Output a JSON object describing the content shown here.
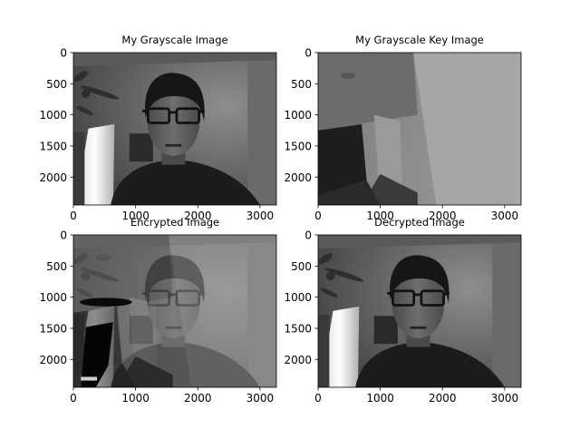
{
  "figure": {
    "background": "#ffffff"
  },
  "chart_data": [
    {
      "type": "image",
      "title": "My Grayscale Image",
      "content": "grayscale photo: man with glasses, ceiling fan at left, bright doorway at lower left",
      "xlim": [
        0,
        3264
      ],
      "ylim": [
        2448,
        0
      ],
      "xticks": [
        "0",
        "1000",
        "2000",
        "3000"
      ],
      "yticks": [
        "0",
        "500",
        "1000",
        "1500",
        "2000"
      ]
    },
    {
      "type": "image",
      "title": "My Grayscale Key Image",
      "content": "grayscale photo: room corner with walls, dark doorway at lower left",
      "xlim": [
        0,
        3264
      ],
      "ylim": [
        2448,
        0
      ],
      "xticks": [
        "0",
        "1000",
        "2000",
        "3000"
      ],
      "yticks": [
        "0",
        "500",
        "1000",
        "1500",
        "2000"
      ]
    },
    {
      "type": "image",
      "title": "Encrypted Image",
      "content": "blend of grayscale image and key image",
      "xlim": [
        0,
        3264
      ],
      "ylim": [
        2448,
        0
      ],
      "xticks": [
        "0",
        "1000",
        "2000",
        "3000"
      ],
      "yticks": [
        "0",
        "500",
        "1000",
        "1500",
        "2000"
      ]
    },
    {
      "type": "image",
      "title": "Decrypted Image",
      "content": "recovered grayscale photo, same as first image",
      "xlim": [
        0,
        3264
      ],
      "ylim": [
        2448,
        0
      ],
      "xticks": [
        "0",
        "1000",
        "2000",
        "3000"
      ],
      "yticks": [
        "0",
        "500",
        "1000",
        "1500",
        "2000"
      ]
    }
  ]
}
